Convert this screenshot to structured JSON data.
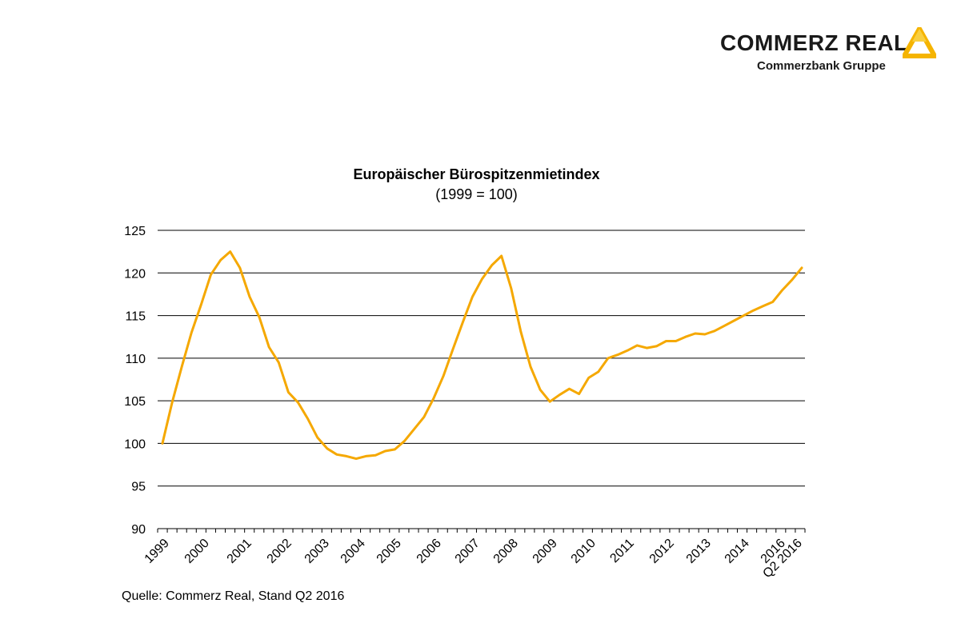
{
  "logo": {
    "name": "COMMERZ REAL",
    "subtitle": "Commerzbank Gruppe",
    "mark_color": "#f5b400",
    "mark_icon": "commerzbank-ribbon-icon"
  },
  "source": "Quelle: Commerz Real, Stand Q2 2016",
  "chart_data": {
    "type": "line",
    "title": "Europäischer Bürospitzenmietindex",
    "subtitle": "(1999 = 100)",
    "xlabel": "",
    "ylabel": "",
    "ylim": [
      90,
      125
    ],
    "yticks": [
      90,
      95,
      100,
      105,
      110,
      115,
      120,
      125
    ],
    "grid": "horizontal",
    "legend": "none",
    "x_ticks": [
      "1999",
      "2000",
      "2001",
      "2002",
      "2003",
      "2004",
      "2005",
      "2006",
      "2007",
      "2008",
      "2009",
      "2010",
      "2011",
      "2012",
      "2013",
      "2014",
      "2016",
      "Q2 2016"
    ],
    "series": [
      {
        "color": "#f5a800",
        "values": [
          100,
          104.8,
          109,
          113,
          116.3,
          119.8,
          121.5,
          122.5,
          120.6,
          117.2,
          114.8,
          111.3,
          109.5,
          106,
          104.8,
          102.9,
          100.7,
          99.4,
          98.7,
          98.5,
          98.2,
          98.5,
          98.6,
          99.1,
          99.3,
          100.3,
          101.7,
          103.1,
          105.3,
          107.9,
          111.1,
          114.2,
          117.2,
          119.3,
          120.9,
          122,
          118.2,
          113.1,
          109,
          106.3,
          104.9,
          105.7,
          106.4,
          105.8,
          107.7,
          108.4,
          110,
          110.4,
          110.9,
          111.5,
          111.2,
          111.4,
          112,
          112,
          112.5,
          112.9,
          112.8,
          113.2,
          113.8,
          114.4,
          115,
          115.6,
          116.1,
          116.6,
          118,
          119.2,
          120.6
        ]
      }
    ]
  }
}
